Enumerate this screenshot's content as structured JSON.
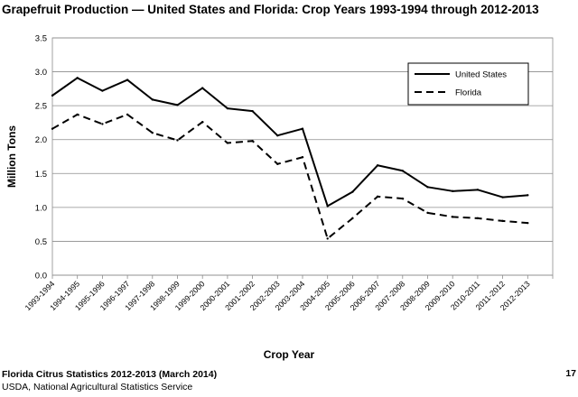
{
  "header": {
    "title": "Grapefruit Production — United States and Florida:  Crop Years 1993-1994 through 2012-2013"
  },
  "footer": {
    "publication": "Florida Citrus Statistics 2012-2013 (March 2014)",
    "agency": "USDA, National Agricultural Statistics Service",
    "page_number": "17"
  },
  "colors": {
    "line": "#000000",
    "grid": "#8c8c8c",
    "background": "#ffffff"
  },
  "chart_data": {
    "type": "line",
    "title": "Grapefruit Production — United States and Florida:  Crop Years 1993-1994 through 2012-2013",
    "xlabel": "Crop Year",
    "ylabel": "Million Tons",
    "ylim": [
      0,
      3.5
    ],
    "yticks": [
      "0.0",
      "0.5",
      "1.0",
      "1.5",
      "2.0",
      "2.5",
      "3.0",
      "3.5"
    ],
    "grid": "horizontal",
    "legend_position": "top-right",
    "categories": [
      "1993-1994",
      "1994-1995",
      "1995-1996",
      "1996-1997",
      "1997-1998",
      "1998-1999",
      "1999-2000",
      "2000-2001",
      "2001-2002",
      "2002-2003",
      "2003-2004",
      "2004-2005",
      "2005-2006",
      "2006-2007",
      "2007-2008",
      "2008-2009",
      "2009-2010",
      "2010-2011",
      "2011-2012",
      "2012-2013"
    ],
    "series": [
      {
        "name": "United States",
        "style": "solid",
        "values": [
          2.65,
          2.91,
          2.72,
          2.88,
          2.59,
          2.51,
          2.76,
          2.46,
          2.42,
          2.06,
          2.16,
          1.02,
          1.23,
          1.62,
          1.54,
          1.3,
          1.24,
          1.26,
          1.15,
          1.18
        ]
      },
      {
        "name": "Florida",
        "style": "dashed",
        "values": [
          2.16,
          2.37,
          2.23,
          2.37,
          2.1,
          1.99,
          2.26,
          1.95,
          1.98,
          1.64,
          1.74,
          0.54,
          0.84,
          1.16,
          1.13,
          0.92,
          0.86,
          0.84,
          0.8,
          0.77
        ]
      }
    ]
  }
}
